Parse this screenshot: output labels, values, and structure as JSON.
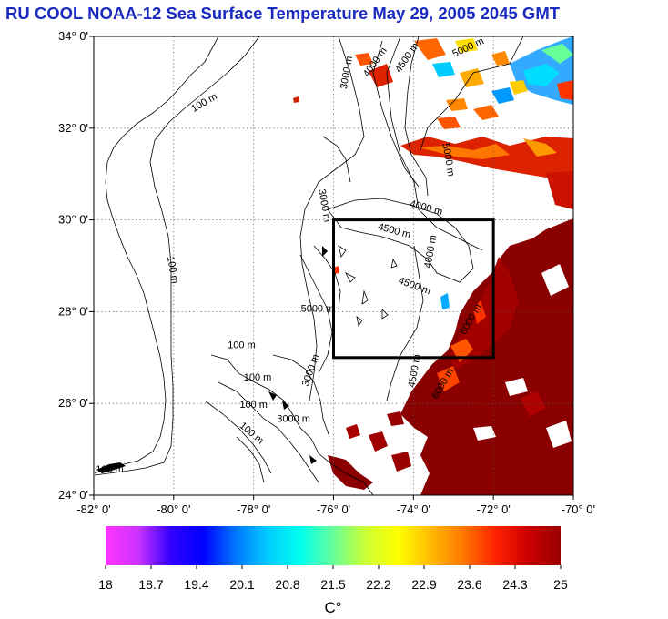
{
  "title": "RU COOL  NOAA-12 Sea Surface Temperature May 29, 2005 2045 GMT",
  "map": {
    "lat_ticks": [
      "34° 0'",
      "32° 0'",
      "30° 0'",
      "28° 0'",
      "26° 0'",
      "24° 0'"
    ],
    "lon_ticks": [
      "-82° 0'",
      "-80° 0'",
      "-78° 0'",
      "-76° 0'",
      "-74° 0'",
      "-72° 0'",
      "-70° 0'"
    ],
    "lat_range": [
      24,
      34
    ],
    "lon_range": [
      -82,
      -70
    ],
    "study_box": {
      "lon": [
        -76,
        -72
      ],
      "lat": [
        27,
        30
      ]
    },
    "contour_labels": [
      {
        "text": "100 m",
        "lon": -79.2,
        "lat": 32.5,
        "rot": -30
      },
      {
        "text": "100 m",
        "lon": -80.1,
        "lat": 28.9,
        "rot": 80
      },
      {
        "text": "100 m",
        "lon": -81.6,
        "lat": 24.5,
        "rot": 0
      },
      {
        "text": "100 m",
        "lon": -78.3,
        "lat": 27.2,
        "rot": 0
      },
      {
        "text": "100 m",
        "lon": -77.9,
        "lat": 26.5,
        "rot": 0
      },
      {
        "text": "100 m",
        "lon": -78.0,
        "lat": 25.9,
        "rot": 0
      },
      {
        "text": "100 m",
        "lon": -78.1,
        "lat": 25.3,
        "rot": 40
      },
      {
        "text": "3000 m",
        "lon": -75.6,
        "lat": 33.2,
        "rot": -80
      },
      {
        "text": "3000 m",
        "lon": -76.3,
        "lat": 30.3,
        "rot": 80
      },
      {
        "text": "3000 m",
        "lon": -76.5,
        "lat": 26.7,
        "rot": -70
      },
      {
        "text": "3000 m",
        "lon": -77.0,
        "lat": 25.6,
        "rot": 0
      },
      {
        "text": "4000 m",
        "lon": -74.9,
        "lat": 33.4,
        "rot": -55
      },
      {
        "text": "4000 m",
        "lon": -73.7,
        "lat": 30.2,
        "rot": 15
      },
      {
        "text": "4000 m",
        "lon": -73.5,
        "lat": 29.3,
        "rot": -80
      },
      {
        "text": "4500 m",
        "lon": -74.1,
        "lat": 33.5,
        "rot": -55
      },
      {
        "text": "4500 m",
        "lon": -74.5,
        "lat": 29.7,
        "rot": 15
      },
      {
        "text": "4500 m",
        "lon": -74.0,
        "lat": 28.5,
        "rot": 20
      },
      {
        "text": "4500 m",
        "lon": -73.9,
        "lat": 26.7,
        "rot": -80
      },
      {
        "text": "5000 m",
        "lon": -72.6,
        "lat": 33.7,
        "rot": -25
      },
      {
        "text": "5000 m",
        "lon": -73.2,
        "lat": 31.3,
        "rot": 80
      },
      {
        "text": "5000 m",
        "lon": -76.4,
        "lat": 28.0,
        "rot": 0
      },
      {
        "text": "6000 m",
        "lon": -73.2,
        "lat": 26.4,
        "rot": -60
      },
      {
        "text": "6000 m",
        "lon": -72.5,
        "lat": 27.8,
        "rot": -60
      }
    ]
  },
  "colorbar": {
    "title": "C°",
    "tick_labels": [
      "18",
      "18.7",
      "19.4",
      "20.1",
      "20.8",
      "21.5",
      "22.2",
      "22.9",
      "23.6",
      "24.3",
      "25"
    ],
    "range": [
      18,
      25
    ],
    "stops": [
      "#ff33ff",
      "#cc33ff",
      "#3300ff",
      "#0000ff",
      "#0077ff",
      "#00ccff",
      "#00ffee",
      "#66ff99",
      "#ccff33",
      "#ffff00",
      "#ffbb00",
      "#ff7700",
      "#ff2200",
      "#cc0000",
      "#990000"
    ]
  }
}
